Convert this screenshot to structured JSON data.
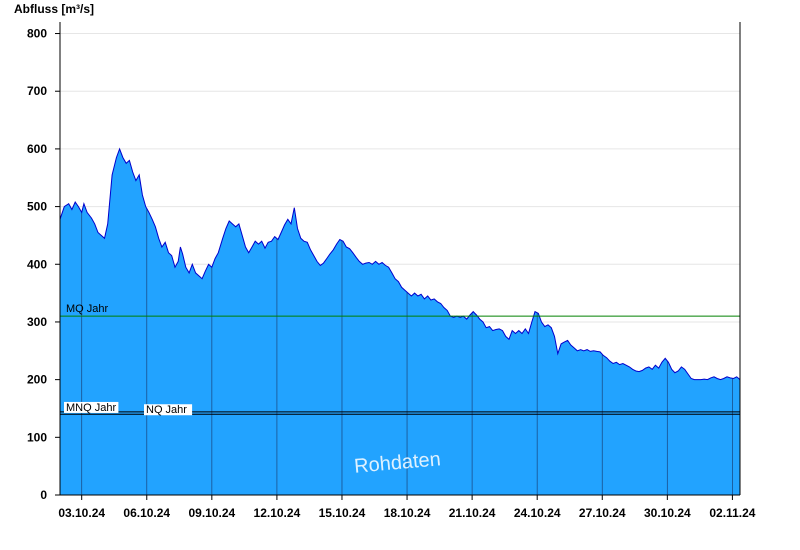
{
  "chart_data": {
    "type": "area",
    "ylabel": "Abfluss [m³/s]",
    "ylim": [
      0,
      820
    ],
    "yticks": [
      0,
      100,
      200,
      300,
      400,
      500,
      600,
      700,
      800
    ],
    "xlim": [
      2.0,
      33.35
    ],
    "xticks": [
      {
        "x": 3,
        "label": "03.10.24"
      },
      {
        "x": 6,
        "label": "06.10.24"
      },
      {
        "x": 9,
        "label": "09.10.24"
      },
      {
        "x": 12,
        "label": "12.10.24"
      },
      {
        "x": 15,
        "label": "15.10.24"
      },
      {
        "x": 18,
        "label": "18.10.24"
      },
      {
        "x": 21,
        "label": "21.10.24"
      },
      {
        "x": 24,
        "label": "24.10.24"
      },
      {
        "x": 27,
        "label": "27.10.24"
      },
      {
        "x": 30,
        "label": "30.10.24"
      },
      {
        "x": 33,
        "label": "02.11.24"
      }
    ],
    "x_unit": "day of October 2024 (02.11.24 = 33)",
    "series": [
      {
        "points": [
          [
            2.0,
            478
          ],
          [
            2.2,
            500
          ],
          [
            2.4,
            505
          ],
          [
            2.55,
            495
          ],
          [
            2.7,
            508
          ],
          [
            2.85,
            500
          ],
          [
            3.0,
            490
          ],
          [
            3.1,
            505
          ],
          [
            3.25,
            490
          ],
          [
            3.45,
            480
          ],
          [
            3.6,
            470
          ],
          [
            3.75,
            455
          ],
          [
            3.9,
            450
          ],
          [
            4.05,
            445
          ],
          [
            4.2,
            470
          ],
          [
            4.4,
            555
          ],
          [
            4.6,
            585
          ],
          [
            4.75,
            600
          ],
          [
            4.9,
            585
          ],
          [
            5.05,
            575
          ],
          [
            5.2,
            580
          ],
          [
            5.35,
            560
          ],
          [
            5.5,
            545
          ],
          [
            5.65,
            555
          ],
          [
            5.8,
            520
          ],
          [
            5.95,
            500
          ],
          [
            6.1,
            490
          ],
          [
            6.25,
            478
          ],
          [
            6.4,
            465
          ],
          [
            6.55,
            445
          ],
          [
            6.7,
            430
          ],
          [
            6.85,
            438
          ],
          [
            7.0,
            420
          ],
          [
            7.15,
            415
          ],
          [
            7.3,
            395
          ],
          [
            7.45,
            405
          ],
          [
            7.55,
            430
          ],
          [
            7.65,
            418
          ],
          [
            7.8,
            395
          ],
          [
            7.95,
            385
          ],
          [
            8.1,
            400
          ],
          [
            8.25,
            385
          ],
          [
            8.4,
            380
          ],
          [
            8.55,
            375
          ],
          [
            8.7,
            388
          ],
          [
            8.85,
            400
          ],
          [
            9.0,
            395
          ],
          [
            9.15,
            410
          ],
          [
            9.3,
            420
          ],
          [
            9.5,
            445
          ],
          [
            9.65,
            462
          ],
          [
            9.8,
            475
          ],
          [
            9.95,
            470
          ],
          [
            10.1,
            465
          ],
          [
            10.25,
            470
          ],
          [
            10.4,
            450
          ],
          [
            10.55,
            430
          ],
          [
            10.7,
            420
          ],
          [
            10.85,
            430
          ],
          [
            11.0,
            440
          ],
          [
            11.15,
            435
          ],
          [
            11.3,
            440
          ],
          [
            11.45,
            428
          ],
          [
            11.6,
            438
          ],
          [
            11.75,
            440
          ],
          [
            11.9,
            448
          ],
          [
            12.05,
            443
          ],
          [
            12.2,
            455
          ],
          [
            12.35,
            468
          ],
          [
            12.5,
            478
          ],
          [
            12.65,
            470
          ],
          [
            12.8,
            498
          ],
          [
            12.95,
            462
          ],
          [
            13.1,
            445
          ],
          [
            13.25,
            440
          ],
          [
            13.4,
            438
          ],
          [
            13.55,
            425
          ],
          [
            13.7,
            415
          ],
          [
            13.85,
            405
          ],
          [
            14.0,
            398
          ],
          [
            14.15,
            402
          ],
          [
            14.3,
            410
          ],
          [
            14.45,
            418
          ],
          [
            14.6,
            425
          ],
          [
            14.75,
            435
          ],
          [
            14.9,
            443
          ],
          [
            15.05,
            440
          ],
          [
            15.2,
            430
          ],
          [
            15.35,
            427
          ],
          [
            15.5,
            420
          ],
          [
            15.65,
            412
          ],
          [
            15.8,
            405
          ],
          [
            15.95,
            400
          ],
          [
            16.1,
            402
          ],
          [
            16.25,
            403
          ],
          [
            16.4,
            400
          ],
          [
            16.55,
            405
          ],
          [
            16.7,
            400
          ],
          [
            16.85,
            403
          ],
          [
            17.0,
            398
          ],
          [
            17.15,
            395
          ],
          [
            17.3,
            385
          ],
          [
            17.45,
            375
          ],
          [
            17.6,
            370
          ],
          [
            17.75,
            360
          ],
          [
            17.9,
            355
          ],
          [
            18.05,
            350
          ],
          [
            18.2,
            345
          ],
          [
            18.35,
            350
          ],
          [
            18.5,
            345
          ],
          [
            18.65,
            348
          ],
          [
            18.8,
            340
          ],
          [
            18.95,
            345
          ],
          [
            19.1,
            338
          ],
          [
            19.25,
            340
          ],
          [
            19.4,
            335
          ],
          [
            19.55,
            332
          ],
          [
            19.7,
            325
          ],
          [
            19.85,
            320
          ],
          [
            20.0,
            310
          ],
          [
            20.15,
            308
          ],
          [
            20.3,
            310
          ],
          [
            20.45,
            308
          ],
          [
            20.6,
            310
          ],
          [
            20.75,
            305
          ],
          [
            20.9,
            312
          ],
          [
            21.05,
            318
          ],
          [
            21.2,
            312
          ],
          [
            21.35,
            305
          ],
          [
            21.5,
            300
          ],
          [
            21.65,
            290
          ],
          [
            21.8,
            292
          ],
          [
            21.95,
            285
          ],
          [
            22.1,
            287
          ],
          [
            22.25,
            288
          ],
          [
            22.4,
            285
          ],
          [
            22.55,
            275
          ],
          [
            22.7,
            270
          ],
          [
            22.85,
            285
          ],
          [
            23.0,
            280
          ],
          [
            23.15,
            285
          ],
          [
            23.3,
            280
          ],
          [
            23.45,
            288
          ],
          [
            23.6,
            280
          ],
          [
            23.75,
            300
          ],
          [
            23.9,
            318
          ],
          [
            24.05,
            315
          ],
          [
            24.2,
            300
          ],
          [
            24.35,
            292
          ],
          [
            24.5,
            295
          ],
          [
            24.65,
            290
          ],
          [
            24.8,
            275
          ],
          [
            24.95,
            245
          ],
          [
            25.1,
            262
          ],
          [
            25.25,
            265
          ],
          [
            25.4,
            268
          ],
          [
            25.55,
            260
          ],
          [
            25.7,
            255
          ],
          [
            25.85,
            250
          ],
          [
            26.0,
            252
          ],
          [
            26.15,
            250
          ],
          [
            26.3,
            252
          ],
          [
            26.45,
            249
          ],
          [
            26.6,
            250
          ],
          [
            26.75,
            249
          ],
          [
            26.9,
            248
          ],
          [
            27.05,
            242
          ],
          [
            27.2,
            238
          ],
          [
            27.35,
            232
          ],
          [
            27.5,
            228
          ],
          [
            27.65,
            230
          ],
          [
            27.8,
            226
          ],
          [
            27.95,
            228
          ],
          [
            28.1,
            225
          ],
          [
            28.25,
            222
          ],
          [
            28.4,
            218
          ],
          [
            28.55,
            215
          ],
          [
            28.7,
            214
          ],
          [
            28.85,
            216
          ],
          [
            29.0,
            220
          ],
          [
            29.15,
            222
          ],
          [
            29.3,
            218
          ],
          [
            29.45,
            225
          ],
          [
            29.6,
            220
          ],
          [
            29.75,
            230
          ],
          [
            29.9,
            237
          ],
          [
            30.05,
            230
          ],
          [
            30.2,
            218
          ],
          [
            30.35,
            212
          ],
          [
            30.5,
            215
          ],
          [
            30.65,
            222
          ],
          [
            30.8,
            218
          ],
          [
            30.95,
            210
          ],
          [
            31.1,
            202
          ],
          [
            31.25,
            200
          ],
          [
            31.4,
            200
          ],
          [
            31.55,
            200
          ],
          [
            31.7,
            201
          ],
          [
            31.85,
            200
          ],
          [
            32.0,
            203
          ],
          [
            32.15,
            205
          ],
          [
            32.3,
            202
          ],
          [
            32.45,
            200
          ],
          [
            32.6,
            202
          ],
          [
            32.75,
            205
          ],
          [
            32.9,
            203
          ],
          [
            33.05,
            202
          ],
          [
            33.2,
            205
          ],
          [
            33.35,
            200
          ]
        ]
      }
    ],
    "reference_lines": [
      {
        "label": "MQ Jahr",
        "value": 310,
        "color": "#008000"
      },
      {
        "label": "MNQ Jahr",
        "value": 144,
        "color": "#000000"
      },
      {
        "label": "NQ Jahr",
        "value": 140,
        "color": "#000000"
      }
    ],
    "watermark": "Rohdaten",
    "grid": true,
    "fill_color": "#22a3ff",
    "line_color": "#0000cc"
  }
}
